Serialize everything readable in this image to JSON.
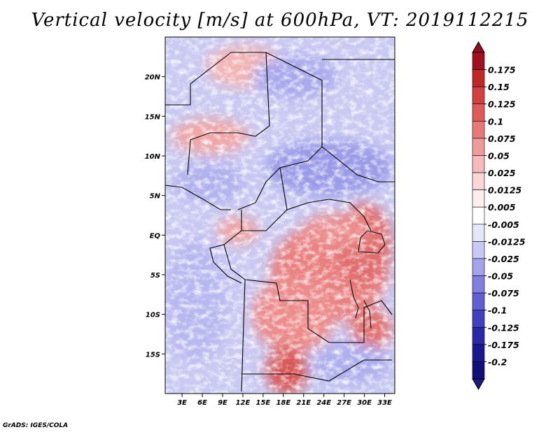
{
  "title": "Vertical velocity [m/s] at 600hPa, VT: 2019112215",
  "credit": "GrADS: IGES/COLA",
  "map": {
    "region": "Central Africa",
    "projection": "latlon",
    "variable": "vertical velocity",
    "units": "m/s",
    "level": "600hPa",
    "valid_time": "2019112215",
    "lon_range": [
      0.5,
      34.5
    ],
    "lat_range": [
      -20,
      25
    ],
    "lat_ticks": [
      "20N",
      "15N",
      "10N",
      "5N",
      "EQ",
      "5S",
      "10S",
      "15S"
    ],
    "lat_values": [
      20,
      15,
      10,
      5,
      0,
      -5,
      -10,
      -15
    ],
    "lon_ticks": [
      "3E",
      "6E",
      "9E",
      "12E",
      "15E",
      "18E",
      "21E",
      "24E",
      "27E",
      "30E",
      "33E"
    ],
    "lon_values": [
      3,
      6,
      9,
      12,
      15,
      18,
      21,
      24,
      27,
      30,
      33
    ]
  },
  "colorbar": {
    "labels": [
      "0.175",
      "0.15",
      "0.125",
      "0.1",
      "0.075",
      "0.05",
      "0.025",
      "0.0125",
      "0.005",
      "-0.005",
      "-0.0125",
      "-0.025",
      "-0.05",
      "-0.075",
      "-0.1",
      "-0.125",
      "-0.175",
      "-0.2"
    ],
    "colors": [
      "#a01020",
      "#c02828",
      "#d44040",
      "#e05a5a",
      "#e87878",
      "#f09a9a",
      "#f6baba",
      "#fad6d6",
      "#fdeeee",
      "#ffffff",
      "#e6e6fa",
      "#c8c8f4",
      "#a4a4ec",
      "#8080e0",
      "#6060d4",
      "#4040c0",
      "#2828a8",
      "#181890",
      "#10107a"
    ],
    "overflow_top_color": "#901020",
    "overflow_bottom_color": "#1a1a80"
  }
}
